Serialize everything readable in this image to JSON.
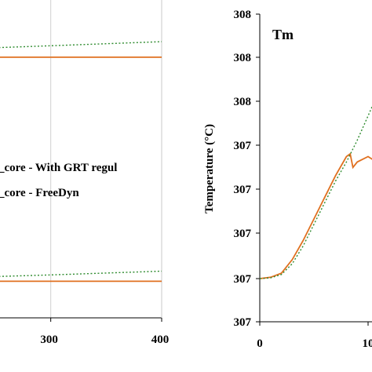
{
  "chart_data": [
    {
      "type": "line",
      "x_tick_labels": [
        "300",
        "400"
      ],
      "xlim": [
        250,
        400
      ],
      "legend": [
        "_core - With GRT regul",
        "_core - FreeDyn"
      ],
      "series": [
        {
          "name": "_core - With GRT regul",
          "color": "#2e8b2e",
          "style": "dotted",
          "groups": [
            {
              "x": [
                250,
                300,
                400
              ],
              "y": [
                0.85,
                0.856,
                0.869
              ]
            },
            {
              "x": [
                250,
                300,
                400
              ],
              "y": [
                0.13,
                0.135,
                0.147
              ]
            }
          ]
        },
        {
          "name": "_core - FreeDyn",
          "color": "#e07020",
          "style": "solid",
          "groups": [
            {
              "x": [
                250,
                400
              ],
              "y": [
                0.82,
                0.82
              ]
            },
            {
              "x": [
                250,
                400
              ],
              "y": [
                0.115,
                0.115
              ]
            }
          ]
        }
      ]
    },
    {
      "type": "line",
      "title": "Tm",
      "ylabel": "Temperature (°C)",
      "y_tick_labels": [
        "308",
        "308",
        "308",
        "307",
        "307",
        "307",
        "307",
        "307"
      ],
      "x_tick_labels": [
        "0",
        "10"
      ],
      "series": [
        {
          "name": "FreeDyn",
          "color": "#e07020",
          "style": "solid",
          "x": [
            0,
            1,
            2,
            3,
            4,
            5,
            6,
            7,
            8,
            8.35,
            8.6,
            9,
            10,
            10.8,
            11.4,
            12
          ],
          "y": [
            0,
            0.005,
            0.02,
            0.07,
            0.14,
            0.22,
            0.3,
            0.38,
            0.45,
            0.46,
            0.41,
            0.43,
            0.45,
            0.43,
            0.38,
            0.37
          ]
        },
        {
          "name": "With GRT regul",
          "color": "#2e8b2e",
          "style": "dotted",
          "x": [
            0,
            1,
            2,
            3,
            4,
            5,
            6,
            7,
            8,
            9,
            10,
            11,
            12
          ],
          "y": [
            0,
            0.003,
            0.015,
            0.055,
            0.12,
            0.2,
            0.28,
            0.36,
            0.43,
            0.51,
            0.6,
            0.69,
            0.78
          ]
        }
      ]
    }
  ]
}
